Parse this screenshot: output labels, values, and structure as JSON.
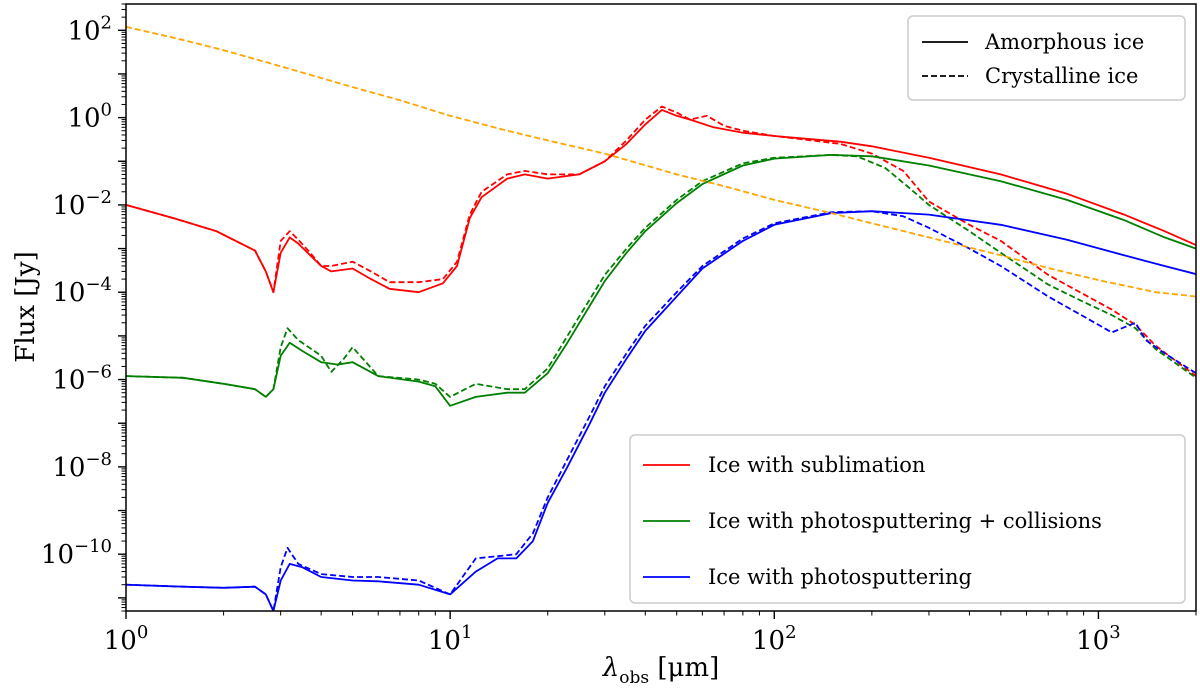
{
  "chart_data": {
    "type": "line",
    "xscale": "log",
    "yscale": "log",
    "xlim": [
      1,
      2000
    ],
    "ylim": [
      5e-12,
      400
    ],
    "xlabel_symbol": "λ",
    "xlabel_sub": "obs",
    "xlabel_unit": " [μm]",
    "ylabel": "Flux [Jy]",
    "x_ticks": [
      {
        "value": 1,
        "base": "10",
        "exp": "0"
      },
      {
        "value": 10,
        "base": "10",
        "exp": "1"
      },
      {
        "value": 100,
        "base": "10",
        "exp": "2"
      },
      {
        "value": 1000,
        "base": "10",
        "exp": "3"
      }
    ],
    "y_ticks": [
      {
        "value": 1e-10,
        "base": "10",
        "exp": "−10"
      },
      {
        "value": 1e-08,
        "base": "10",
        "exp": "−8"
      },
      {
        "value": 1e-06,
        "base": "10",
        "exp": "−6"
      },
      {
        "value": 0.0001,
        "base": "10",
        "exp": "−4"
      },
      {
        "value": 0.01,
        "base": "10",
        "exp": "−2"
      },
      {
        "value": 1,
        "base": "10",
        "exp": "0"
      },
      {
        "value": 100,
        "base": "10",
        "exp": "2"
      }
    ],
    "legend_style": {
      "position": "top-right",
      "entries": [
        {
          "label": "Amorphous ice",
          "dash": "solid"
        },
        {
          "label": "Crystalline ice",
          "dash": "dashed"
        }
      ]
    },
    "legend_color": {
      "position": "lower-right",
      "entries": [
        {
          "label": "Ice with sublimation",
          "color": "#ff0000"
        },
        {
          "label": "Ice with photosputtering + collisions",
          "color": "#008000"
        },
        {
          "label": "Ice with photosputtering",
          "color": "#0000ff"
        }
      ]
    },
    "series": [
      {
        "name": "Ice with sublimation (amorphous)",
        "color": "#ff0000",
        "dash": "solid",
        "points": [
          [
            1,
            0.01
          ],
          [
            1.4,
            0.005
          ],
          [
            1.9,
            0.0025
          ],
          [
            2.5,
            0.0009
          ],
          [
            2.7,
            0.0003
          ],
          [
            2.85,
            0.0001
          ],
          [
            3.0,
            0.0008
          ],
          [
            3.2,
            0.0018
          ],
          [
            3.4,
            0.0013
          ],
          [
            3.7,
            0.0007
          ],
          [
            4.0,
            0.0004
          ],
          [
            4.3,
            0.0003
          ],
          [
            5,
            0.00035
          ],
          [
            5.7,
            0.0002
          ],
          [
            6.5,
            0.00012
          ],
          [
            8,
            0.0001
          ],
          [
            9.5,
            0.00016
          ],
          [
            10.5,
            0.0004
          ],
          [
            11.5,
            0.005
          ],
          [
            12.5,
            0.015
          ],
          [
            15,
            0.04
          ],
          [
            17,
            0.05
          ],
          [
            20,
            0.04
          ],
          [
            25,
            0.05
          ],
          [
            30,
            0.1
          ],
          [
            35,
            0.25
          ],
          [
            40,
            0.7
          ],
          [
            45,
            1.5
          ],
          [
            50,
            1.1
          ],
          [
            55,
            0.9
          ],
          [
            65,
            0.6
          ],
          [
            80,
            0.45
          ],
          [
            100,
            0.38
          ],
          [
            130,
            0.32
          ],
          [
            160,
            0.28
          ],
          [
            200,
            0.22
          ],
          [
            300,
            0.12
          ],
          [
            500,
            0.05
          ],
          [
            800,
            0.018
          ],
          [
            1200,
            0.006
          ],
          [
            1600,
            0.0025
          ],
          [
            2000,
            0.0012
          ]
        ]
      },
      {
        "name": "Ice with sublimation (crystalline)",
        "color": "#ff0000",
        "dash": "dashed",
        "points": [
          [
            1,
            0.01
          ],
          [
            1.4,
            0.005
          ],
          [
            1.9,
            0.0025
          ],
          [
            2.5,
            0.0009
          ],
          [
            2.7,
            0.0003
          ],
          [
            2.85,
            0.0001
          ],
          [
            3.0,
            0.0015
          ],
          [
            3.2,
            0.0025
          ],
          [
            3.4,
            0.0016
          ],
          [
            3.7,
            0.0008
          ],
          [
            4.0,
            0.0004
          ],
          [
            4.3,
            0.0004
          ],
          [
            5,
            0.0005
          ],
          [
            5.7,
            0.0003
          ],
          [
            6.5,
            0.00017
          ],
          [
            8,
            0.00017
          ],
          [
            9.5,
            0.0002
          ],
          [
            10.5,
            0.0005
          ],
          [
            11.5,
            0.006
          ],
          [
            12.5,
            0.02
          ],
          [
            15,
            0.05
          ],
          [
            17,
            0.06
          ],
          [
            20,
            0.05
          ],
          [
            25,
            0.05
          ],
          [
            30,
            0.1
          ],
          [
            35,
            0.3
          ],
          [
            40,
            0.9
          ],
          [
            45,
            1.8
          ],
          [
            50,
            1.3
          ],
          [
            55,
            0.9
          ],
          [
            62,
            1.1
          ],
          [
            70,
            0.65
          ],
          [
            80,
            0.5
          ],
          [
            100,
            0.38
          ],
          [
            130,
            0.3
          ],
          [
            160,
            0.25
          ],
          [
            200,
            0.15
          ],
          [
            250,
            0.06
          ],
          [
            300,
            0.012
          ],
          [
            400,
            0.0035
          ],
          [
            500,
            0.0015
          ],
          [
            700,
            0.00025
          ],
          [
            900,
            9e-05
          ],
          [
            1100,
            4e-05
          ],
          [
            1300,
            1.8e-05
          ],
          [
            1500,
            6e-06
          ],
          [
            2000,
            1.2e-06
          ]
        ]
      },
      {
        "name": "Ice with photosputtering + collisions (amorphous)",
        "color": "#008000",
        "dash": "solid",
        "points": [
          [
            1,
            1.2e-06
          ],
          [
            1.5,
            1.1e-06
          ],
          [
            2,
            8e-07
          ],
          [
            2.5,
            6e-07
          ],
          [
            2.7,
            4e-07
          ],
          [
            2.85,
            6e-07
          ],
          [
            3.0,
            3.5e-06
          ],
          [
            3.2,
            7e-06
          ],
          [
            3.5,
            4.5e-06
          ],
          [
            4,
            2.5e-06
          ],
          [
            4.5,
            2.2e-06
          ],
          [
            5,
            2.5e-06
          ],
          [
            6,
            1.2e-06
          ],
          [
            8,
            9e-07
          ],
          [
            9,
            7e-07
          ],
          [
            10,
            2.5e-07
          ],
          [
            12,
            4e-07
          ],
          [
            15,
            5e-07
          ],
          [
            17,
            5e-07
          ],
          [
            20,
            1.4e-06
          ],
          [
            23,
            7e-06
          ],
          [
            27,
            5e-05
          ],
          [
            30,
            0.00018
          ],
          [
            35,
            0.0008
          ],
          [
            40,
            0.0025
          ],
          [
            50,
            0.011
          ],
          [
            60,
            0.03
          ],
          [
            80,
            0.08
          ],
          [
            100,
            0.115
          ],
          [
            150,
            0.14
          ],
          [
            200,
            0.13
          ],
          [
            300,
            0.08
          ],
          [
            500,
            0.035
          ],
          [
            800,
            0.013
          ],
          [
            1200,
            0.0045
          ],
          [
            1600,
            0.0018
          ],
          [
            2000,
            0.001
          ]
        ]
      },
      {
        "name": "Ice with photosputtering + collisions (crystalline)",
        "color": "#008000",
        "dash": "dashed",
        "points": [
          [
            1,
            1.2e-06
          ],
          [
            1.5,
            1.1e-06
          ],
          [
            2,
            8e-07
          ],
          [
            2.5,
            6e-07
          ],
          [
            2.7,
            4e-07
          ],
          [
            2.85,
            6e-07
          ],
          [
            3.0,
            5.5e-06
          ],
          [
            3.15,
            1.5e-05
          ],
          [
            3.4,
            8e-06
          ],
          [
            4,
            3.5e-06
          ],
          [
            4.3,
            1.5e-06
          ],
          [
            4.7,
            3e-06
          ],
          [
            5,
            5.5e-06
          ],
          [
            5.5,
            2.5e-06
          ],
          [
            6,
            1.2e-06
          ],
          [
            8,
            1e-06
          ],
          [
            9,
            8e-07
          ],
          [
            10,
            4e-07
          ],
          [
            12,
            8e-07
          ],
          [
            15,
            6e-07
          ],
          [
            17,
            6e-07
          ],
          [
            20,
            1.8e-06
          ],
          [
            23,
            1e-05
          ],
          [
            27,
            7e-05
          ],
          [
            30,
            0.00025
          ],
          [
            35,
            0.001
          ],
          [
            40,
            0.003
          ],
          [
            50,
            0.013
          ],
          [
            60,
            0.035
          ],
          [
            80,
            0.09
          ],
          [
            100,
            0.12
          ],
          [
            150,
            0.14
          ],
          [
            180,
            0.13
          ],
          [
            220,
            0.07
          ],
          [
            260,
            0.025
          ],
          [
            300,
            0.01
          ],
          [
            400,
            0.0025
          ],
          [
            500,
            0.0008
          ],
          [
            700,
            0.00015
          ],
          [
            900,
            6e-05
          ],
          [
            1100,
            3e-05
          ],
          [
            1300,
            1.5e-05
          ],
          [
            1500,
            5e-06
          ],
          [
            2000,
            1.1e-06
          ]
        ]
      },
      {
        "name": "Ice with photosputtering (amorphous)",
        "color": "#0000ff",
        "dash": "solid",
        "points": [
          [
            1,
            2e-11
          ],
          [
            1.5,
            1.8e-11
          ],
          [
            2,
            1.7e-11
          ],
          [
            2.5,
            1.8e-11
          ],
          [
            2.7,
            1.2e-11
          ],
          [
            2.85,
            5e-12
          ],
          [
            3.0,
            2.5e-11
          ],
          [
            3.2,
            6e-11
          ],
          [
            3.5,
            5e-11
          ],
          [
            4,
            3e-11
          ],
          [
            5,
            2.5e-11
          ],
          [
            6,
            2.4e-11
          ],
          [
            8,
            2e-11
          ],
          [
            10,
            1.2e-11
          ],
          [
            12,
            4e-11
          ],
          [
            14,
            8e-11
          ],
          [
            16,
            8e-11
          ],
          [
            18,
            2e-10
          ],
          [
            20,
            1.5e-09
          ],
          [
            23,
            1e-08
          ],
          [
            27,
            1e-07
          ],
          [
            30,
            5e-07
          ],
          [
            35,
            3e-06
          ],
          [
            40,
            1.3e-05
          ],
          [
            50,
            8e-05
          ],
          [
            60,
            0.00035
          ],
          [
            80,
            0.0015
          ],
          [
            100,
            0.0035
          ],
          [
            150,
            0.0065
          ],
          [
            200,
            0.0072
          ],
          [
            300,
            0.006
          ],
          [
            500,
            0.0035
          ],
          [
            800,
            0.0016
          ],
          [
            1200,
            0.0007
          ],
          [
            1600,
            0.0004
          ],
          [
            2000,
            0.00026
          ]
        ]
      },
      {
        "name": "Ice with photosputtering (crystalline)",
        "color": "#0000ff",
        "dash": "dashed",
        "points": [
          [
            1,
            2e-11
          ],
          [
            1.5,
            1.8e-11
          ],
          [
            2,
            1.7e-11
          ],
          [
            2.5,
            1.8e-11
          ],
          [
            2.7,
            1.2e-11
          ],
          [
            2.85,
            5e-12
          ],
          [
            3.0,
            5e-11
          ],
          [
            3.15,
            1.4e-10
          ],
          [
            3.4,
            6e-11
          ],
          [
            4,
            3.5e-11
          ],
          [
            5,
            3e-11
          ],
          [
            6,
            3e-11
          ],
          [
            8,
            2.5e-11
          ],
          [
            10,
            1.2e-11
          ],
          [
            12,
            8e-11
          ],
          [
            14,
            9e-11
          ],
          [
            16,
            1e-10
          ],
          [
            18,
            3e-10
          ],
          [
            20,
            2e-09
          ],
          [
            23,
            1.5e-08
          ],
          [
            27,
            1.5e-07
          ],
          [
            30,
            7e-07
          ],
          [
            35,
            4e-06
          ],
          [
            40,
            1.7e-05
          ],
          [
            50,
            0.0001
          ],
          [
            60,
            0.0004
          ],
          [
            80,
            0.0017
          ],
          [
            100,
            0.0038
          ],
          [
            150,
            0.0068
          ],
          [
            200,
            0.0072
          ],
          [
            250,
            0.0055
          ],
          [
            300,
            0.003
          ],
          [
            400,
            0.001
          ],
          [
            500,
            0.0004
          ],
          [
            700,
            8e-05
          ],
          [
            900,
            2.8e-05
          ],
          [
            1100,
            1.2e-05
          ],
          [
            1300,
            2e-05
          ],
          [
            1400,
            8e-06
          ],
          [
            1600,
            4e-06
          ],
          [
            2000,
            1.4e-06
          ]
        ]
      },
      {
        "name": "Reference curve",
        "color": "#ffa500",
        "dash": "dashed",
        "points": [
          [
            1,
            120
          ],
          [
            1.5,
            60
          ],
          [
            2,
            35
          ],
          [
            3,
            15
          ],
          [
            5,
            5
          ],
          [
            7,
            2.5
          ],
          [
            10,
            1.1
          ],
          [
            15,
            0.5
          ],
          [
            20,
            0.3
          ],
          [
            30,
            0.15
          ],
          [
            50,
            0.05
          ],
          [
            70,
            0.027
          ],
          [
            100,
            0.013
          ],
          [
            150,
            0.0065
          ],
          [
            200,
            0.0038
          ],
          [
            300,
            0.0018
          ],
          [
            500,
            0.0007
          ],
          [
            700,
            0.00036
          ],
          [
            1000,
            0.00019
          ],
          [
            1500,
            0.0001
          ],
          [
            2000,
            8e-05
          ]
        ]
      }
    ]
  }
}
